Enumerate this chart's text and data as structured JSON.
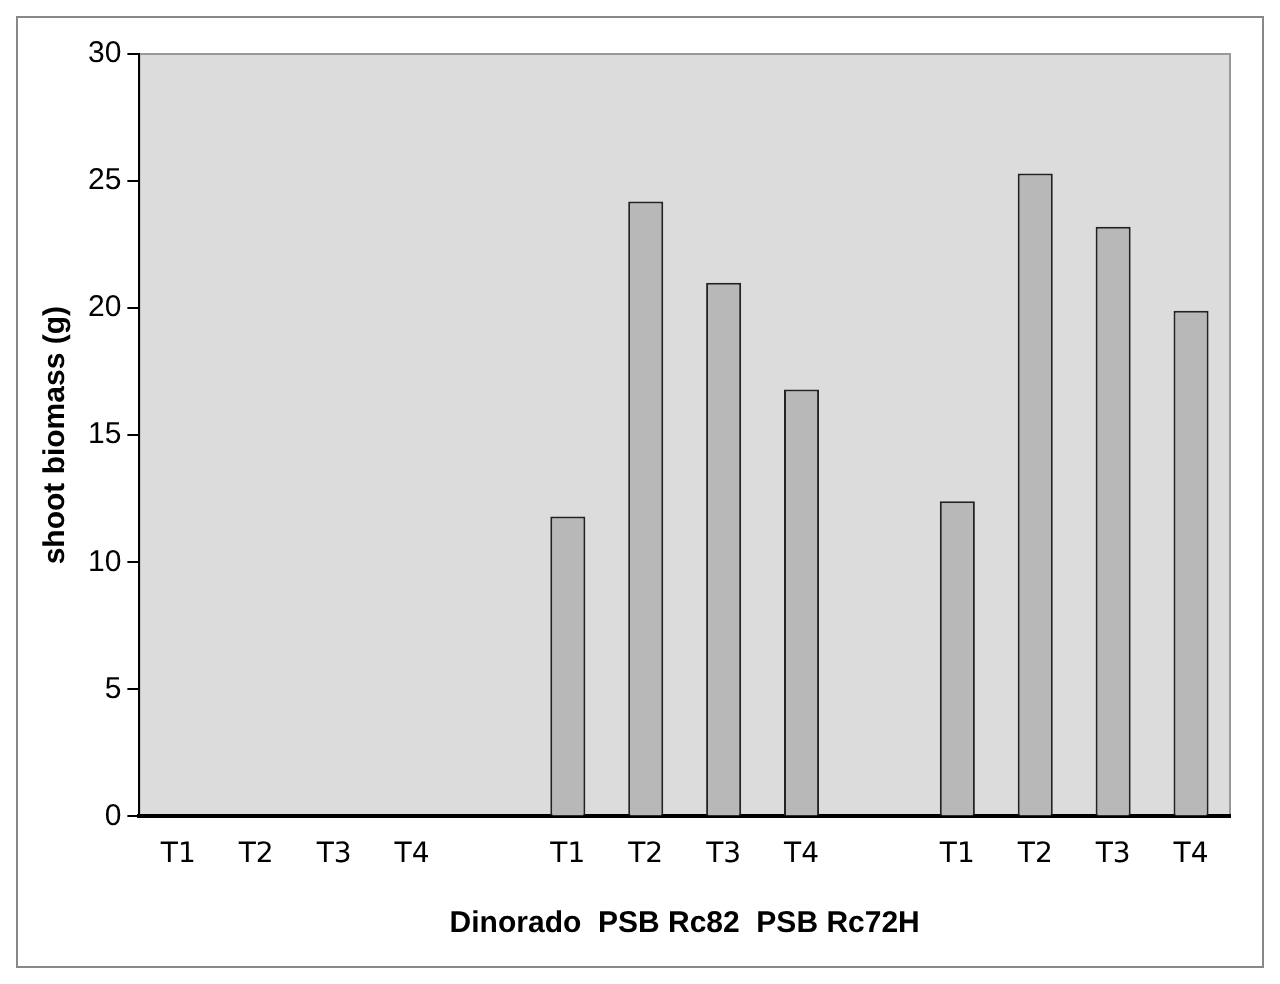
{
  "chart_data": {
    "type": "bar",
    "xlabel": "Dinorado  PSB Rc82  PSB Rc72H",
    "ylabel": "shoot biomass (g)",
    "categories": [
      "T1",
      "T2",
      "T3",
      "T4",
      null,
      "T1",
      "T2",
      "T3",
      "T4",
      null,
      "T1",
      "T2",
      "T3",
      "T4"
    ],
    "values": [
      0,
      0,
      0,
      0,
      null,
      11.8,
      24.2,
      21.0,
      16.8,
      null,
      12.4,
      25.3,
      23.2,
      19.9
    ],
    "color": "#b8b8b8",
    "ylim": [
      0,
      30
    ],
    "yticks": [
      0,
      5,
      10,
      15,
      20,
      25,
      30
    ],
    "grid": false,
    "legend": false
  }
}
